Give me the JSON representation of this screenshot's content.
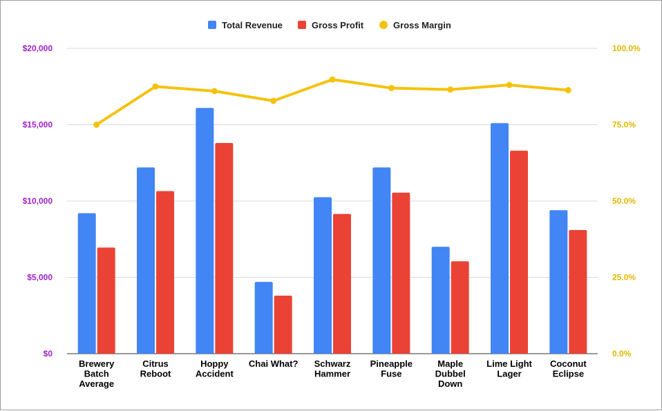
{
  "chart_data": {
    "type": "bar",
    "categories": [
      [
        "Brewery",
        "Batch",
        "Average"
      ],
      [
        "Citrus",
        "Reboot"
      ],
      [
        "Hoppy",
        "Accident"
      ],
      [
        "Chai What?"
      ],
      [
        "Schwarz",
        "Hammer"
      ],
      [
        "Pineapple",
        "Fuse"
      ],
      [
        "Maple",
        "Dubbel",
        "Down"
      ],
      [
        "Lime Light",
        "Lager"
      ],
      [
        "Coconut",
        "Eclipse"
      ]
    ],
    "series": [
      {
        "name": "Total Revenue",
        "type": "bar",
        "axis": "left",
        "color": "#4285f4",
        "values": [
          9200,
          12200,
          16100,
          4700,
          10250,
          12200,
          7000,
          15100,
          9400
        ]
      },
      {
        "name": "Gross Profit",
        "type": "bar",
        "axis": "left",
        "color": "#ea4335",
        "values": [
          6950,
          10650,
          13800,
          3800,
          9150,
          10550,
          6050,
          13300,
          8100
        ]
      },
      {
        "name": "Gross Margin",
        "type": "line",
        "axis": "right",
        "color": "#f4c20d",
        "values": [
          75.0,
          87.5,
          86.0,
          82.8,
          89.8,
          87.0,
          86.5,
          88.0,
          86.3
        ]
      }
    ],
    "left_axis": {
      "ylim": [
        0,
        20000
      ],
      "ticks": [
        "$0",
        "$5,000",
        "$10,000",
        "$15,000",
        "$20,000"
      ],
      "color": "#a020c8"
    },
    "right_axis": {
      "ylim": [
        0,
        100
      ],
      "ticks": [
        "0.0%",
        "25.0%",
        "50.0%",
        "75.0%",
        "100.0%"
      ],
      "color": "#e0b800"
    },
    "legend": {
      "position": "top"
    },
    "grid": true
  }
}
